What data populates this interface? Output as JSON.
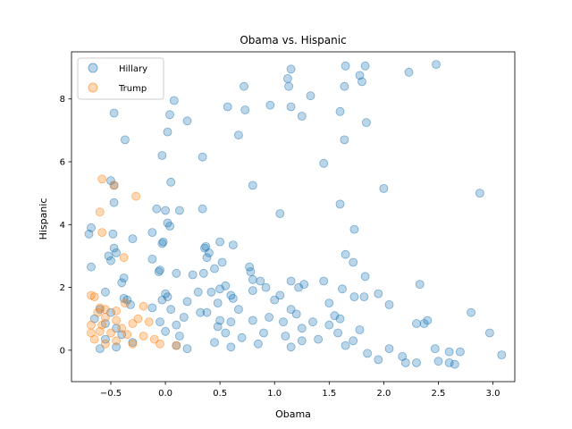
{
  "chart_data": {
    "type": "scatter",
    "title": "Obama vs. Hispanic",
    "xlabel": "Obama",
    "ylabel": "Hispanic",
    "xlim": [
      -0.86,
      3.2
    ],
    "ylim": [
      -1.0,
      9.5
    ],
    "xticks": [
      -0.5,
      0.0,
      0.5,
      1.0,
      1.5,
      2.0,
      2.5,
      3.0
    ],
    "xtick_labels": [
      "−0.5",
      "0.0",
      "0.5",
      "1.0",
      "1.5",
      "2.0",
      "2.5",
      "3.0"
    ],
    "yticks": [
      0,
      2,
      4,
      6,
      8
    ],
    "ytick_labels": [
      "0",
      "2",
      "4",
      "6",
      "8"
    ],
    "grid": false,
    "legend_position": "top-left",
    "series": [
      {
        "name": "Hillary",
        "color": "#1f77b4",
        "points": [
          [
            -0.47,
            7.55
          ],
          [
            -0.37,
            6.7
          ],
          [
            -0.5,
            5.4
          ],
          [
            -0.47,
            5.25
          ],
          [
            -0.47,
            4.7
          ],
          [
            -0.68,
            3.9
          ],
          [
            -0.7,
            3.7
          ],
          [
            -0.48,
            3.7
          ],
          [
            -0.3,
            3.55
          ],
          [
            -0.47,
            3.25
          ],
          [
            -0.45,
            3.1
          ],
          [
            -0.52,
            3.0
          ],
          [
            -0.5,
            2.85
          ],
          [
            -0.68,
            2.65
          ],
          [
            -0.38,
            2.3
          ],
          [
            -0.4,
            2.15
          ],
          [
            -0.55,
            1.85
          ],
          [
            -0.38,
            1.65
          ],
          [
            -0.35,
            1.6
          ],
          [
            -0.32,
            1.45
          ],
          [
            -0.6,
            1.3
          ],
          [
            -0.5,
            1.2
          ],
          [
            -0.65,
            1.0
          ],
          [
            -0.55,
            0.85
          ],
          [
            -0.45,
            0.7
          ],
          [
            -0.4,
            0.5
          ],
          [
            -0.55,
            0.35
          ],
          [
            -0.3,
            0.25
          ],
          [
            -0.45,
            0.1
          ],
          [
            -0.6,
            0.05
          ],
          [
            0.08,
            7.95
          ],
          [
            0.04,
            7.5
          ],
          [
            0.2,
            7.3
          ],
          [
            0.02,
            6.95
          ],
          [
            -0.03,
            6.2
          ],
          [
            0.34,
            6.15
          ],
          [
            0.05,
            5.35
          ],
          [
            -0.08,
            4.5
          ],
          [
            0.0,
            4.45
          ],
          [
            0.13,
            4.45
          ],
          [
            0.02,
            4.05
          ],
          [
            0.04,
            3.95
          ],
          [
            -0.12,
            3.75
          ],
          [
            -0.02,
            3.45
          ],
          [
            -0.03,
            3.4
          ],
          [
            -0.12,
            2.9
          ],
          [
            -0.05,
            2.55
          ],
          [
            -0.06,
            2.5
          ],
          [
            0.1,
            2.45
          ],
          [
            0.0,
            1.8
          ],
          [
            0.02,
            1.7
          ],
          [
            -0.03,
            1.6
          ],
          [
            0.2,
            1.55
          ],
          [
            -0.12,
            1.35
          ],
          [
            0.05,
            1.3
          ],
          [
            0.17,
            1.05
          ],
          [
            -0.05,
            0.9
          ],
          [
            0.1,
            0.8
          ],
          [
            0.0,
            0.6
          ],
          [
            0.13,
            0.45
          ],
          [
            0.1,
            0.15
          ],
          [
            0.2,
            0.05
          ],
          [
            0.72,
            8.4
          ],
          [
            0.57,
            7.75
          ],
          [
            0.73,
            7.65
          ],
          [
            0.67,
            6.85
          ],
          [
            0.34,
            4.5
          ],
          [
            0.5,
            3.45
          ],
          [
            0.37,
            3.3
          ],
          [
            0.36,
            3.25
          ],
          [
            0.62,
            3.35
          ],
          [
            0.4,
            3.1
          ],
          [
            0.38,
            2.95
          ],
          [
            0.52,
            2.8
          ],
          [
            0.45,
            2.6
          ],
          [
            0.35,
            2.45
          ],
          [
            0.25,
            2.4
          ],
          [
            0.5,
            1.95
          ],
          [
            0.55,
            2.05
          ],
          [
            0.3,
            1.85
          ],
          [
            0.42,
            1.85
          ],
          [
            0.6,
            1.75
          ],
          [
            0.62,
            1.65
          ],
          [
            0.48,
            1.5
          ],
          [
            0.38,
            1.2
          ],
          [
            0.32,
            1.2
          ],
          [
            0.67,
            1.3
          ],
          [
            0.5,
            0.95
          ],
          [
            0.6,
            0.9
          ],
          [
            0.48,
            0.75
          ],
          [
            0.55,
            0.55
          ],
          [
            0.7,
            0.4
          ],
          [
            0.45,
            0.25
          ],
          [
            0.6,
            0.1
          ],
          [
            1.15,
            8.95
          ],
          [
            1.12,
            8.65
          ],
          [
            1.13,
            8.4
          ],
          [
            0.96,
            7.8
          ],
          [
            1.15,
            7.75
          ],
          [
            1.25,
            7.45
          ],
          [
            1.33,
            8.1
          ],
          [
            0.8,
            5.25
          ],
          [
            1.05,
            4.35
          ],
          [
            0.77,
            2.65
          ],
          [
            0.78,
            2.5
          ],
          [
            0.8,
            2.25
          ],
          [
            0.87,
            2.2
          ],
          [
            0.92,
            2.0
          ],
          [
            0.8,
            1.9
          ],
          [
            1.15,
            2.2
          ],
          [
            1.27,
            2.1
          ],
          [
            1.22,
            2.0
          ],
          [
            1.05,
            1.75
          ],
          [
            1.0,
            1.6
          ],
          [
            1.15,
            1.3
          ],
          [
            1.2,
            1.15
          ],
          [
            0.95,
            1.05
          ],
          [
            0.8,
            0.95
          ],
          [
            1.08,
            0.9
          ],
          [
            1.35,
            0.9
          ],
          [
            1.25,
            0.7
          ],
          [
            0.9,
            0.55
          ],
          [
            1.1,
            0.45
          ],
          [
            1.25,
            0.3
          ],
          [
            0.85,
            0.2
          ],
          [
            1.15,
            0.1
          ],
          [
            1.65,
            9.05
          ],
          [
            1.78,
            8.75
          ],
          [
            1.83,
            9.05
          ],
          [
            1.64,
            8.4
          ],
          [
            1.8,
            8.55
          ],
          [
            1.6,
            7.6
          ],
          [
            1.84,
            7.25
          ],
          [
            1.64,
            6.7
          ],
          [
            1.45,
            5.95
          ],
          [
            1.6,
            4.65
          ],
          [
            1.73,
            3.85
          ],
          [
            1.65,
            3.05
          ],
          [
            1.72,
            2.8
          ],
          [
            1.83,
            2.35
          ],
          [
            1.45,
            2.2
          ],
          [
            1.62,
            1.95
          ],
          [
            1.73,
            1.7
          ],
          [
            1.82,
            1.7
          ],
          [
            1.5,
            1.5
          ],
          [
            1.55,
            1.1
          ],
          [
            1.6,
            1.0
          ],
          [
            1.5,
            0.8
          ],
          [
            1.78,
            0.65
          ],
          [
            1.58,
            0.55
          ],
          [
            1.72,
            0.3
          ],
          [
            1.4,
            0.35
          ],
          [
            1.65,
            0.15
          ],
          [
            2.23,
            8.85
          ],
          [
            2.48,
            9.1
          ],
          [
            2.0,
            5.15
          ],
          [
            2.88,
            5.0
          ],
          [
            2.33,
            2.1
          ],
          [
            1.95,
            1.8
          ],
          [
            2.05,
            1.45
          ],
          [
            2.8,
            1.2
          ],
          [
            2.4,
            0.95
          ],
          [
            2.3,
            0.85
          ],
          [
            2.37,
            0.85
          ],
          [
            2.97,
            0.55
          ],
          [
            2.05,
            0.05
          ],
          [
            2.47,
            0.05
          ],
          [
            2.7,
            -0.05
          ],
          [
            2.6,
            -0.05
          ],
          [
            2.5,
            -0.35
          ],
          [
            2.6,
            -0.4
          ],
          [
            2.65,
            -0.45
          ],
          [
            2.2,
            -0.4
          ],
          [
            2.3,
            -0.4
          ],
          [
            3.08,
            -0.15
          ],
          [
            2.17,
            -0.2
          ],
          [
            1.95,
            -0.3
          ],
          [
            1.85,
            -0.1
          ]
        ]
      },
      {
        "name": "Trump",
        "color": "#ff7f0e",
        "points": [
          [
            -0.58,
            5.45
          ],
          [
            -0.47,
            5.25
          ],
          [
            -0.27,
            4.9
          ],
          [
            -0.6,
            4.4
          ],
          [
            -0.58,
            3.75
          ],
          [
            -0.38,
            2.95
          ],
          [
            -0.68,
            1.75
          ],
          [
            -0.65,
            1.7
          ],
          [
            -0.37,
            1.5
          ],
          [
            -0.6,
            1.35
          ],
          [
            -0.55,
            1.3
          ],
          [
            -0.45,
            1.25
          ],
          [
            -0.62,
            1.2
          ],
          [
            -0.2,
            1.4
          ],
          [
            -0.25,
            1.0
          ],
          [
            -0.55,
            1.05
          ],
          [
            -0.68,
            0.8
          ],
          [
            -0.58,
            0.8
          ],
          [
            -0.45,
            0.95
          ],
          [
            -0.3,
            0.85
          ],
          [
            -0.15,
            0.9
          ],
          [
            -0.4,
            0.7
          ],
          [
            -0.6,
            0.6
          ],
          [
            -0.68,
            0.55
          ],
          [
            -0.5,
            0.55
          ],
          [
            -0.35,
            0.5
          ],
          [
            -0.2,
            0.45
          ],
          [
            -0.65,
            0.35
          ],
          [
            -0.45,
            0.3
          ],
          [
            -0.1,
            0.35
          ],
          [
            -0.55,
            0.2
          ],
          [
            -0.3,
            0.2
          ],
          [
            -0.05,
            0.2
          ],
          [
            0.1,
            0.15
          ]
        ]
      }
    ]
  }
}
